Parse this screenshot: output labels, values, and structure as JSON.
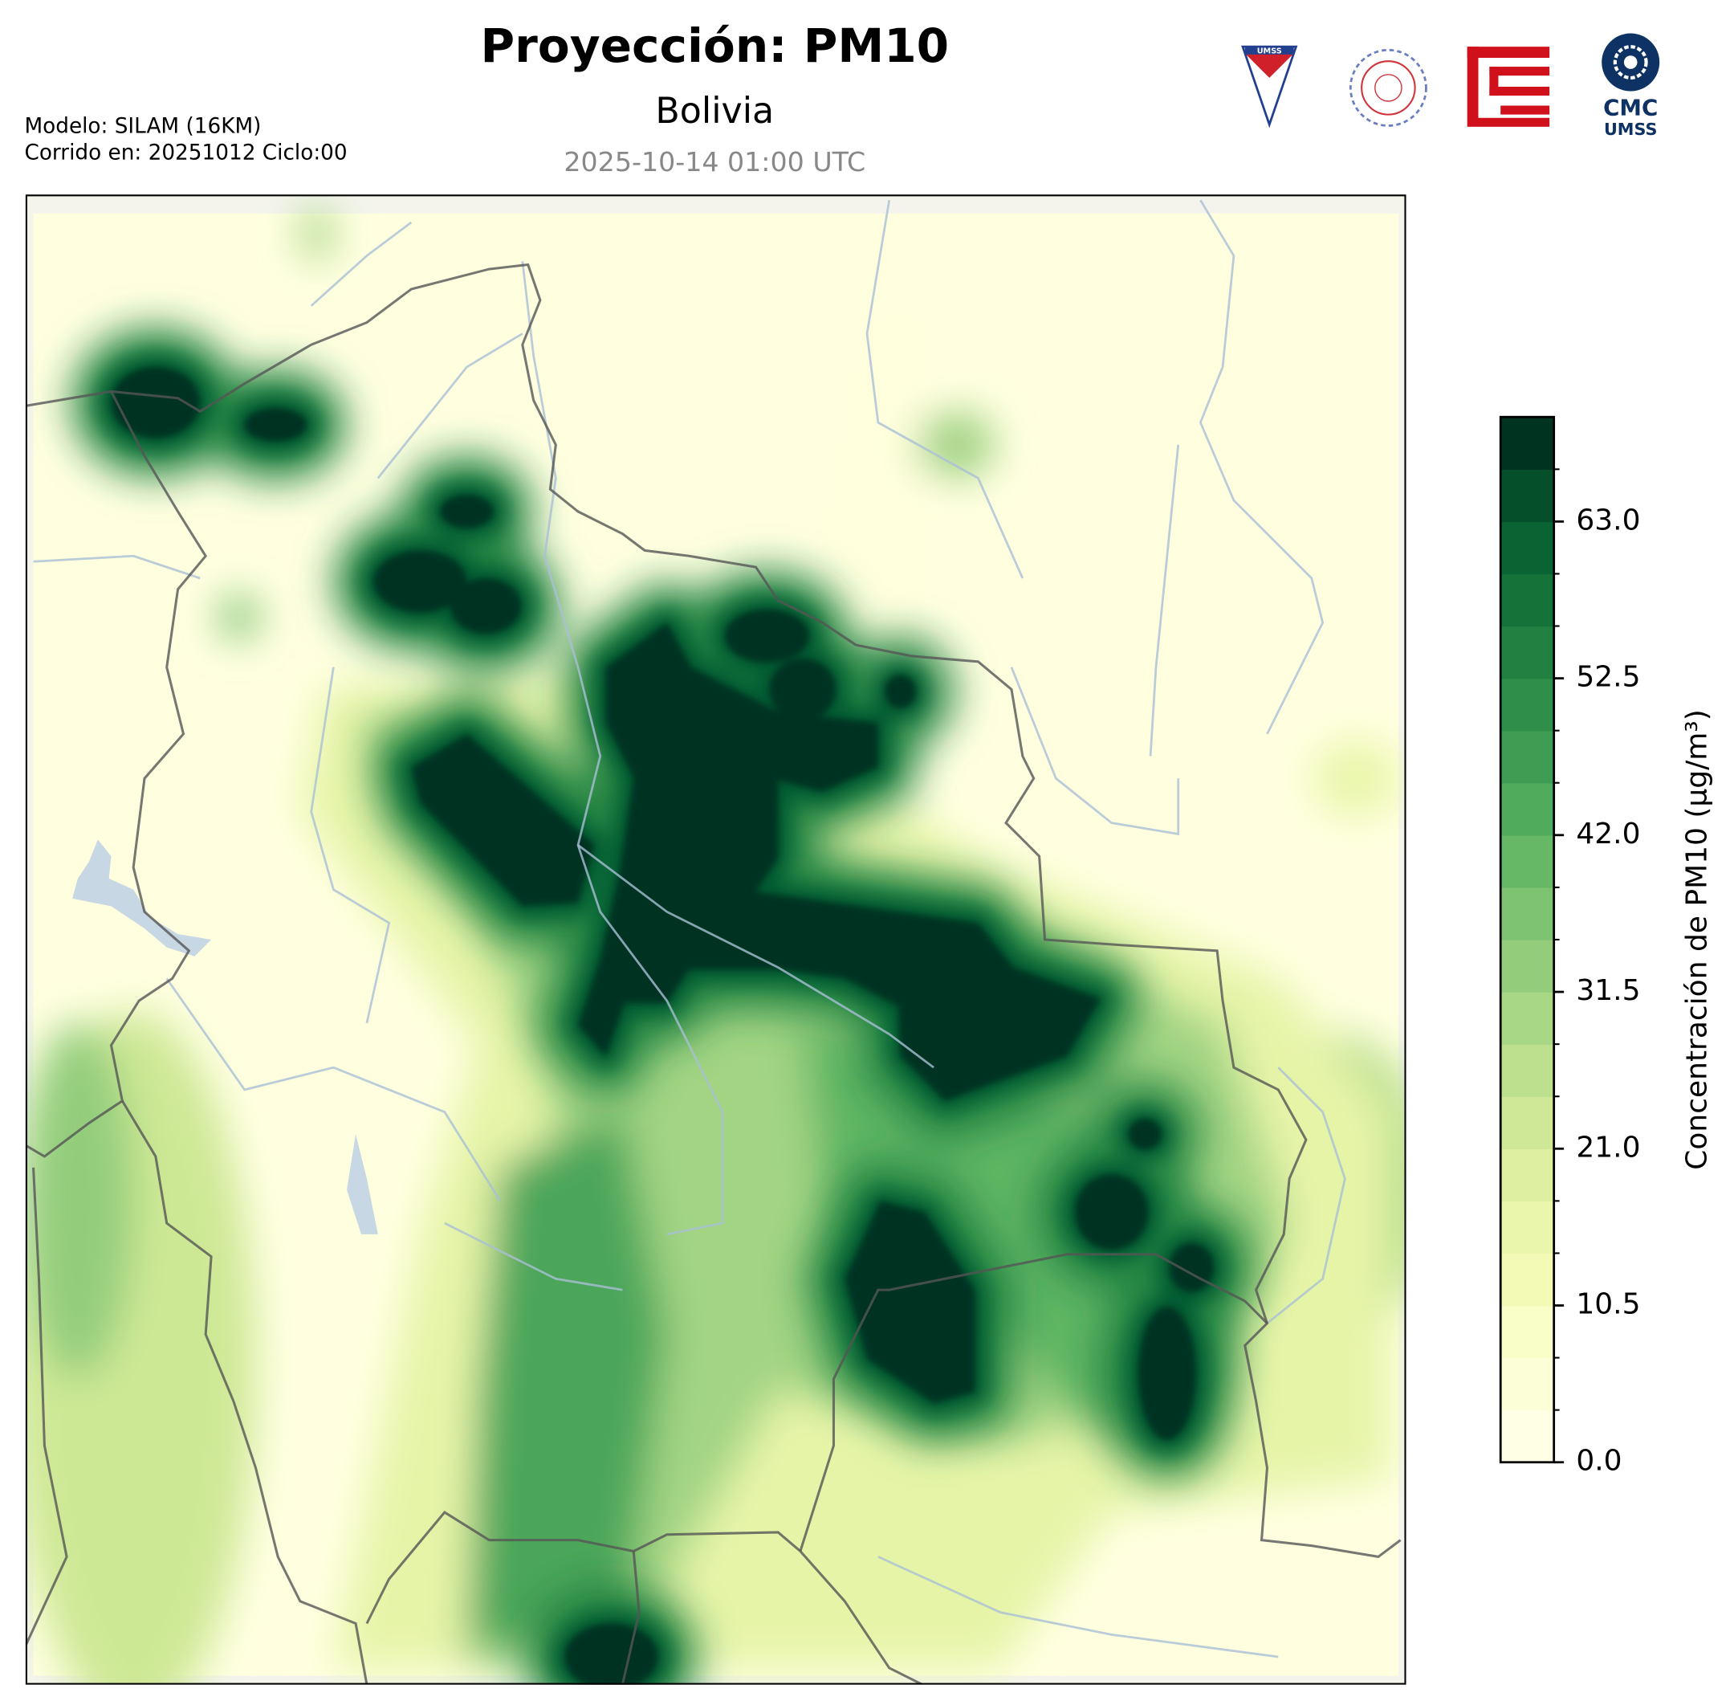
{
  "header": {
    "title": "Proyección: PM10",
    "subtitle": "Bolivia",
    "date": "2025-10-14 01:00 UTC",
    "model": "Modelo: SILAM (16KM)",
    "run": "Corrido en: 20251012 Ciclo:00"
  },
  "logos": {
    "shield": "UMSS",
    "cmc": "CMC",
    "cmc_sub": "UMSS"
  },
  "chart_data": {
    "type": "colorbar",
    "label": "Concentración de PM10 (µg/m³)",
    "ylim": [
      0,
      70
    ],
    "yticks": [
      {
        "value": 0,
        "label": "0.0"
      },
      10.5,
      {
        "value": 21,
        "label": "21.0"
      },
      31.5,
      {
        "value": 42,
        "label": "42.0"
      },
      52.5,
      {
        "value": 63,
        "label": "63.0"
      }
    ],
    "colors": [
      "#ffffe5",
      "#fcfed8",
      "#f9fdc8",
      "#f3fab6",
      "#eaf6ab",
      "#deefa2",
      "#cfe898",
      "#bde08e",
      "#a8d785",
      "#93cd7b",
      "#7dc371",
      "#66b866",
      "#51ab5d",
      "#3e9d53",
      "#2f8f4a",
      "#228141",
      "#157339",
      "#0a6333",
      "#05502b",
      "#003320"
    ]
  }
}
